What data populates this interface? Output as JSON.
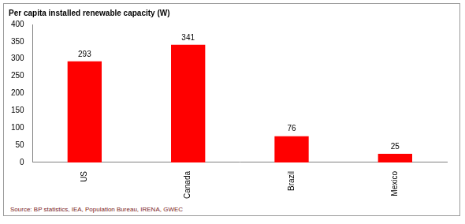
{
  "chart_data": {
    "type": "bar",
    "title": "Per capita installed renewable capacity (W)",
    "source": "Source: BP statistics, IEA, Population Bureau, IRENA, GWEC",
    "categories": [
      "US",
      "Canada",
      "Brazil",
      "Mexico"
    ],
    "values": [
      293,
      341,
      76,
      25
    ],
    "color": "#ff0000",
    "ylim": [
      0,
      400
    ],
    "yticks": [
      0,
      50,
      100,
      150,
      200,
      250,
      300,
      350,
      400
    ],
    "grid": false,
    "data_labels": true
  }
}
